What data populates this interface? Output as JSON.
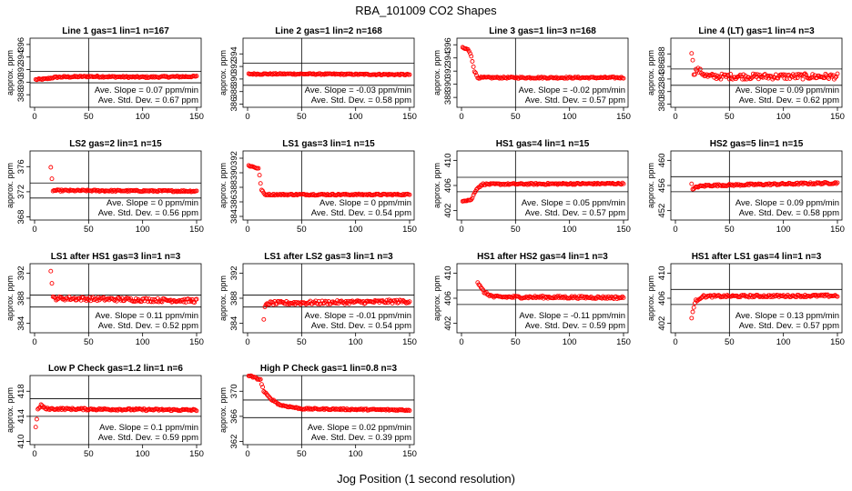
{
  "figure": {
    "title": "RBA_101009  CO2 Shapes",
    "xlabel": "Jog Position (1 second resolution)",
    "marker_color": "#ff0000"
  },
  "chart_data": [
    {
      "type": "scatter",
      "title": "Line 1 gas=1 lin=1 n=167",
      "ylabel": "approx. ppm",
      "xlim": [
        0,
        150
      ],
      "ylim": [
        386,
        397
      ],
      "xticks": [
        0,
        50,
        100,
        150
      ],
      "yticks": [
        388,
        390,
        392,
        394,
        396
      ],
      "hlines": [
        391.7,
        389.9
      ],
      "vline": 50,
      "slope": "Ave. Slope =  0.07  ppm/min",
      "stddev": "Ave. Std. Dev. =  0.67  ppm",
      "series": [
        {
          "x_start": 1,
          "x_end": 150,
          "shape": [
            [
              1,
              390.4
            ],
            [
              10,
              390.5
            ],
            [
              20,
              390.8
            ],
            [
              50,
              390.9
            ],
            [
              100,
              390.8
            ],
            [
              150,
              390.9
            ]
          ],
          "noise": 0.12
        }
      ]
    },
    {
      "type": "scatter",
      "title": "Line 2 gas=1 lin=2 n=168",
      "ylabel": "approx. ppm",
      "xlim": [
        0,
        150
      ],
      "ylim": [
        385.5,
        396.5
      ],
      "xticks": [
        0,
        50,
        100,
        150
      ],
      "yticks": [
        386,
        388,
        390,
        392,
        394
      ],
      "hlines": [
        392.5,
        389.0
      ],
      "vline": 50,
      "slope": "Ave. Slope =  -0.03  ppm/min",
      "stddev": "Ave. Std. Dev. =  0.58  ppm",
      "series": [
        {
          "x_start": 1,
          "x_end": 150,
          "shape": [
            [
              1,
              390.8
            ],
            [
              50,
              390.8
            ],
            [
              150,
              390.7
            ]
          ],
          "noise": 0.1
        }
      ]
    },
    {
      "type": "scatter",
      "title": "Line 3 gas=1 lin=3 n=168",
      "ylabel": "approx. ppm",
      "xlim": [
        0,
        150
      ],
      "ylim": [
        386.5,
        397
      ],
      "xticks": [
        0,
        50,
        100,
        150
      ],
      "yticks": [
        388,
        390,
        392,
        394,
        396
      ],
      "hlines": [],
      "vline": 50,
      "slope": "Ave. Slope =  -0.02  ppm/min",
      "stddev": "Ave. Std. Dev. =  0.57  ppm",
      "series": [
        {
          "x_start": 1,
          "x_end": 150,
          "shape": [
            [
              1,
              395.5
            ],
            [
              6,
              395.3
            ],
            [
              9,
              394.3
            ],
            [
              12,
              392.0
            ],
            [
              15,
              391.0
            ],
            [
              30,
              391.0
            ],
            [
              150,
              391.0
            ]
          ],
          "noise": 0.12
        }
      ]
    },
    {
      "type": "scatter",
      "title": "Line 4 (LT) gas=1 lin=4 n=3",
      "ylabel": "approx. ppm",
      "xlim": [
        0,
        150
      ],
      "ylim": [
        379.5,
        390.5
      ],
      "xticks": [
        0,
        50,
        100,
        150
      ],
      "yticks": [
        380,
        382,
        384,
        386,
        388
      ],
      "hlines": [
        385.6,
        383.0
      ],
      "vline": 50,
      "slope": "Ave. Slope =  0.09  ppm/min",
      "stddev": "Ave. Std. Dev. =  0.62  ppm",
      "series": [
        {
          "x_start": 15,
          "x_end": 150,
          "shape": [
            [
              15,
              388.4
            ],
            [
              17,
              385.0
            ],
            [
              20,
              385.5
            ],
            [
              30,
              384.4
            ],
            [
              150,
              384.4
            ]
          ],
          "noise": 0.45
        }
      ]
    },
    {
      "type": "scatter",
      "title": "LS2 gas=2 lin=1 n=15",
      "ylabel": "approx. ppm",
      "xlim": [
        0,
        150
      ],
      "ylim": [
        367.5,
        378.5
      ],
      "xticks": [
        0,
        50,
        100,
        150
      ],
      "yticks": [
        368,
        372,
        376
      ],
      "hlines": [
        373.4,
        371.0
      ],
      "vline": 50,
      "slope": "Ave. Slope =  0  ppm/min",
      "stddev": "Ave. Std. Dev. =  0.56  ppm",
      "series": [
        {
          "x_start": 15,
          "x_end": 150,
          "shape": [
            [
              15,
              375.8
            ],
            [
              17,
              372.2
            ],
            [
              150,
              372.1
            ]
          ],
          "noise": 0.12
        }
      ]
    },
    {
      "type": "scatter",
      "title": "LS1 gas=3 lin=1 n=15",
      "ylabel": "approx. ppm",
      "xlim": [
        0,
        150
      ],
      "ylim": [
        383.5,
        393
      ],
      "xticks": [
        0,
        50,
        100,
        150
      ],
      "yticks": [
        384,
        386,
        388,
        390,
        392
      ],
      "hlines": [],
      "vline": 50,
      "slope": "Ave. Slope =  0  ppm/min",
      "stddev": "Ave. Std. Dev. =  0.54  ppm",
      "series": [
        {
          "x_start": 1,
          "x_end": 150,
          "shape": [
            [
              1,
              391.0
            ],
            [
              10,
              390.6
            ],
            [
              13,
              387.6
            ],
            [
              16,
              387.0
            ],
            [
              150,
              387.0
            ]
          ],
          "noise": 0.1
        }
      ]
    },
    {
      "type": "scatter",
      "title": "HS1 gas=4 lin=1 n=15",
      "ylabel": "approx. ppm",
      "xlim": [
        0,
        150
      ],
      "ylim": [
        400.5,
        411.5
      ],
      "xticks": [
        0,
        50,
        100,
        150
      ],
      "yticks": [
        402,
        406,
        410
      ],
      "hlines": [
        407.3,
        405.0
      ],
      "vline": 50,
      "slope": "Ave. Slope =  0.05  ppm/min",
      "stddev": "Ave. Std. Dev. =  0.57  ppm",
      "series": [
        {
          "x_start": 1,
          "x_end": 150,
          "shape": [
            [
              1,
              403.6
            ],
            [
              9,
              403.7
            ],
            [
              14,
              405.5
            ],
            [
              20,
              406.2
            ],
            [
              150,
              406.3
            ]
          ],
          "noise": 0.12
        }
      ]
    },
    {
      "type": "scatter",
      "title": "HS2 gas=5 lin=1 n=15",
      "ylabel": "approx. ppm",
      "xlim": [
        0,
        150
      ],
      "ylim": [
        450.5,
        461.5
      ],
      "xticks": [
        0,
        50,
        100,
        150
      ],
      "yticks": [
        452,
        456,
        460
      ],
      "hlines": [
        457.4,
        455.0
      ],
      "vline": 50,
      "slope": "Ave. Slope =  0.09  ppm/min",
      "stddev": "Ave. Std. Dev. =  0.58  ppm",
      "series": [
        {
          "x_start": 15,
          "x_end": 150,
          "shape": [
            [
              15,
              456.4
            ],
            [
              16,
              455.3
            ],
            [
              20,
              455.8
            ],
            [
              30,
              456.0
            ],
            [
              150,
              456.4
            ]
          ],
          "noise": 0.15
        }
      ]
    },
    {
      "type": "scatter",
      "title": "LS1 after HS1 gas=3 lin=1 n=3",
      "ylabel": "approx. ppm",
      "xlim": [
        0,
        150
      ],
      "ylim": [
        382.5,
        393.5
      ],
      "xticks": [
        0,
        50,
        100,
        150
      ],
      "yticks": [
        384,
        388,
        392
      ],
      "hlines": [
        388.5,
        386.6
      ],
      "vline": 50,
      "slope": "Ave. Slope =  0.11  ppm/min",
      "stddev": "Ave. Std. Dev. =  0.52  ppm",
      "series": [
        {
          "x_start": 15,
          "x_end": 150,
          "shape": [
            [
              15,
              392.6
            ],
            [
              17,
              388.0
            ],
            [
              150,
              387.6
            ]
          ],
          "noise": 0.3
        }
      ]
    },
    {
      "type": "scatter",
      "title": "LS1 after LS2 gas=3 lin=1 n=3",
      "ylabel": "approx. ppm",
      "xlim": [
        0,
        150
      ],
      "ylim": [
        382.5,
        393.5
      ],
      "xticks": [
        0,
        50,
        100,
        150
      ],
      "yticks": [
        384,
        388,
        392
      ],
      "hlines": [
        388.5,
        386.6
      ],
      "vline": 50,
      "slope": "Ave. Slope =  -0.01  ppm/min",
      "stddev": "Ave. Std. Dev. =  0.54  ppm",
      "series": [
        {
          "x_start": 15,
          "x_end": 150,
          "shape": [
            [
              15,
              384.6
            ],
            [
              16,
              386.4
            ],
            [
              18,
              387.2
            ],
            [
              150,
              387.5
            ]
          ],
          "noise": 0.28
        }
      ]
    },
    {
      "type": "scatter",
      "title": "HS1 after HS2 gas=4 lin=1 n=3",
      "ylabel": "approx. ppm",
      "xlim": [
        0,
        150
      ],
      "ylim": [
        400.5,
        411.5
      ],
      "xticks": [
        0,
        50,
        100,
        150
      ],
      "yticks": [
        402,
        406,
        410
      ],
      "hlines": [
        407.3,
        405.0
      ],
      "vline": 50,
      "slope": "Ave. Slope =  -0.11  ppm/min",
      "stddev": "Ave. Std. Dev. =  0.59  ppm",
      "series": [
        {
          "x_start": 15,
          "x_end": 150,
          "shape": [
            [
              15,
              408.6
            ],
            [
              18,
              407.6
            ],
            [
              22,
              406.8
            ],
            [
              30,
              406.2
            ],
            [
              150,
              406.1
            ]
          ],
          "noise": 0.2
        }
      ]
    },
    {
      "type": "scatter",
      "title": "HS1 after LS1 gas=4 lin=1 n=3",
      "ylabel": "approx. ppm",
      "xlim": [
        0,
        150
      ],
      "ylim": [
        400.5,
        411.5
      ],
      "xticks": [
        0,
        50,
        100,
        150
      ],
      "yticks": [
        402,
        406,
        410
      ],
      "hlines": [
        407.4,
        405.0
      ],
      "vline": 50,
      "slope": "Ave. Slope =  0.13  ppm/min",
      "stddev": "Ave. Std. Dev. =  0.57  ppm",
      "series": [
        {
          "x_start": 15,
          "x_end": 150,
          "shape": [
            [
              15,
              402.8
            ],
            [
              16,
              404.0
            ],
            [
              19,
              405.6
            ],
            [
              25,
              406.3
            ],
            [
              150,
              406.4
            ]
          ],
          "noise": 0.18
        }
      ]
    },
    {
      "type": "scatter",
      "title": "Low P Check gas=1.2 lin=1 n=6",
      "ylabel": "approx. ppm",
      "xlim": [
        0,
        150
      ],
      "ylim": [
        409.5,
        420.5
      ],
      "xticks": [
        0,
        50,
        100,
        150
      ],
      "yticks": [
        410,
        414,
        418
      ],
      "hlines": [
        416.8,
        414.0
      ],
      "vline": 50,
      "slope": "Ave. Slope =  0.1  ppm/min",
      "stddev": "Ave. Std. Dev. =  0.59  ppm",
      "series": [
        {
          "x_start": 1,
          "x_end": 150,
          "shape": [
            [
              1,
              412.2
            ],
            [
              3,
              415.0
            ],
            [
              6,
              415.8
            ],
            [
              10,
              415.2
            ],
            [
              150,
              415.0
            ]
          ],
          "noise": 0.15
        }
      ]
    },
    {
      "type": "scatter",
      "title": "High P Check gas=1 lin=0.8 n=3",
      "ylabel": "approx. ppm",
      "xlim": [
        0,
        150
      ],
      "ylim": [
        361.5,
        372.5
      ],
      "xticks": [
        0,
        50,
        100,
        150
      ],
      "yticks": [
        362,
        366,
        370
      ],
      "hlines": [
        368.6,
        365.8
      ],
      "vline": 50,
      "slope": "Ave. Slope =  0.02  ppm/min",
      "stddev": "Ave. Std. Dev. =  0.39  ppm",
      "series": [
        {
          "x_start": 1,
          "x_end": 150,
          "shape": [
            [
              1,
              372.5
            ],
            [
              12,
              371.8
            ],
            [
              15,
              370.0
            ],
            [
              20,
              369.0
            ],
            [
              30,
              367.8
            ],
            [
              50,
              367.2
            ],
            [
              150,
              367.0
            ]
          ],
          "noise": 0.12
        }
      ]
    }
  ]
}
